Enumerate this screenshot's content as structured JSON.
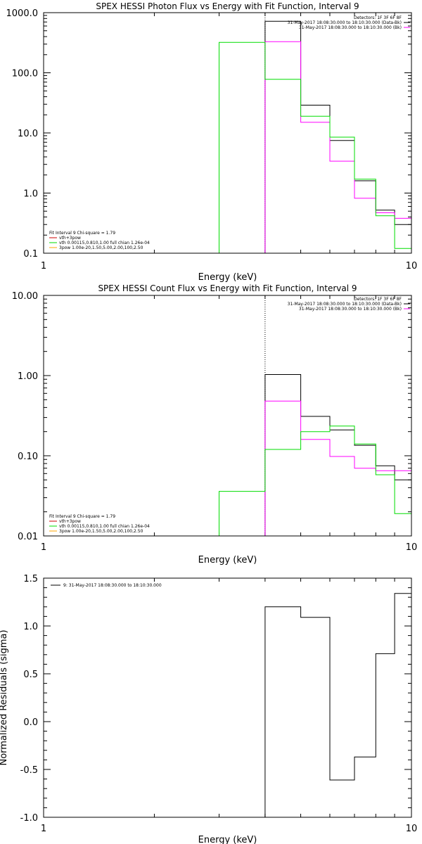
{
  "colors": {
    "background": "#ffffff",
    "axes": "#000000",
    "data": "#000000",
    "model": "#ff00ff",
    "component_vth": "#00dd00",
    "component_3pow": "#ffa500",
    "total_legend": "#cc0000"
  },
  "chart_data": [
    {
      "type": "line",
      "title": "SPEX HESSI Photon Flux vs Energy with Fit Function, Interval 9",
      "xlabel": "Energy (keV)",
      "ylabel": "",
      "xscale": "log",
      "yscale": "log",
      "xlim": [
        1,
        10
      ],
      "ylim": [
        0.1,
        1000
      ],
      "xticks": [
        {
          "value": 1,
          "label": "1"
        },
        {
          "value": 10,
          "label": "10"
        }
      ],
      "yticks": [
        {
          "value": 0.1,
          "label": "0.1"
        },
        {
          "value": 1,
          "label": "1.0"
        },
        {
          "value": 10,
          "label": "10.0"
        },
        {
          "value": 100,
          "label": "100.0"
        },
        {
          "value": 1000,
          "label": "1000.0"
        }
      ],
      "grid": false,
      "legend_position": "top-right",
      "legend_lines": [
        "Detectors: 1F 3F 6F 8F",
        "31-May-2017 18:08:30.000 to 18:10:30.000 (Data-Bk)",
        "31-May-2017 18:08:30.000 to 18:10:30.000 (Bk)"
      ],
      "fit_legend": [
        "Fit Interval 9   Chi-square = 1.79",
        "vth+3pow",
        "vth 0.00115,0.810,1.00  full chian 1.26e-04",
        "3pow 1.00e-20,1.50,5.00,2.00,100,2.50"
      ],
      "vline_x": 4,
      "series": [
        {
          "color": "#000000",
          "edges": [
            4,
            5,
            6,
            7,
            8,
            9,
            10
          ],
          "values": [
            720,
            29,
            7.5,
            1.6,
            0.52,
            0.3
          ]
        },
        {
          "color": "#ff00ff",
          "edges": [
            4,
            5,
            6,
            7,
            8,
            9,
            10
          ],
          "values": [
            330,
            15,
            3.4,
            0.82,
            0.47,
            0.38
          ]
        },
        {
          "color": "#00dd00",
          "edges": [
            3,
            4,
            5,
            6,
            7,
            8,
            9,
            10
          ],
          "values": [
            320,
            78,
            19,
            8.5,
            1.7,
            0.42,
            0.12
          ]
        }
      ]
    },
    {
      "type": "line",
      "title": "SPEX HESSI Count Flux vs Energy with Fit Function, Interval 9",
      "xlabel": "Energy (keV)",
      "ylabel": "",
      "xscale": "log",
      "yscale": "log",
      "xlim": [
        1,
        10
      ],
      "ylim": [
        0.01,
        10
      ],
      "xticks": [
        {
          "value": 1,
          "label": "1"
        },
        {
          "value": 10,
          "label": "10"
        }
      ],
      "yticks": [
        {
          "value": 0.01,
          "label": "0.01"
        },
        {
          "value": 0.1,
          "label": "0.10"
        },
        {
          "value": 1,
          "label": "1.00"
        },
        {
          "value": 10,
          "label": "10.00"
        }
      ],
      "grid": false,
      "legend_position": "top-right",
      "legend_lines": [
        "Detectors: 1F 3F 6F 8F",
        "31-May-2017 18:08:30.000 to 18:10:30.000 (Data-Bk)",
        "31-May-2017 18:08:30.000 to 18:10:30.000 (Bk)"
      ],
      "fit_legend": [
        "Fit Interval 9   Chi-square = 1.79",
        "vth+3pow",
        "vth 0.00115,0.810,1.00  full chian 1.26e-04",
        "3pow 1.00e-20,1.50,5.00,2.00,100,2.50"
      ],
      "vline_x": 4,
      "series": [
        {
          "color": "#000000",
          "edges": [
            4,
            5,
            6,
            7,
            8,
            9,
            10
          ],
          "values": [
            1.03,
            0.31,
            0.21,
            0.135,
            0.075,
            0.05
          ]
        },
        {
          "color": "#ff00ff",
          "edges": [
            4,
            5,
            6,
            7,
            8,
            9,
            10
          ],
          "values": [
            0.48,
            0.16,
            0.098,
            0.07,
            0.065,
            0.065
          ]
        },
        {
          "color": "#00dd00",
          "edges": [
            3,
            4,
            5,
            6,
            7,
            8,
            9,
            10
          ],
          "values": [
            0.036,
            0.12,
            0.2,
            0.235,
            0.14,
            0.058,
            0.019
          ]
        }
      ]
    },
    {
      "type": "line",
      "title": "",
      "xlabel": "Energy (keV)",
      "ylabel": "Normalized Residuals (sigma)",
      "xscale": "log",
      "yscale": "linear",
      "xlim": [
        1,
        10
      ],
      "ylim": [
        -1.0,
        1.5
      ],
      "xticks": [
        {
          "value": 1,
          "label": "1"
        },
        {
          "value": 10,
          "label": "10"
        }
      ],
      "yticks": [
        {
          "value": -1.0,
          "label": "-1.0"
        },
        {
          "value": -0.5,
          "label": "-0.5"
        },
        {
          "value": 0.0,
          "label": "0.0"
        },
        {
          "value": 0.5,
          "label": "0.5"
        },
        {
          "value": 1.0,
          "label": "1.0"
        },
        {
          "value": 1.5,
          "label": "1.5"
        }
      ],
      "grid": false,
      "legend_position": "top-left",
      "legend_lines": [
        "9: 31-May-2017 18:08:30.000 to 18:10:30.000"
      ],
      "series": [
        {
          "color": "#000000",
          "edges": [
            4,
            5,
            6,
            7,
            8,
            9,
            10
          ],
          "values": [
            1.2,
            1.09,
            -0.61,
            -0.37,
            0.71,
            1.34
          ]
        }
      ]
    }
  ]
}
